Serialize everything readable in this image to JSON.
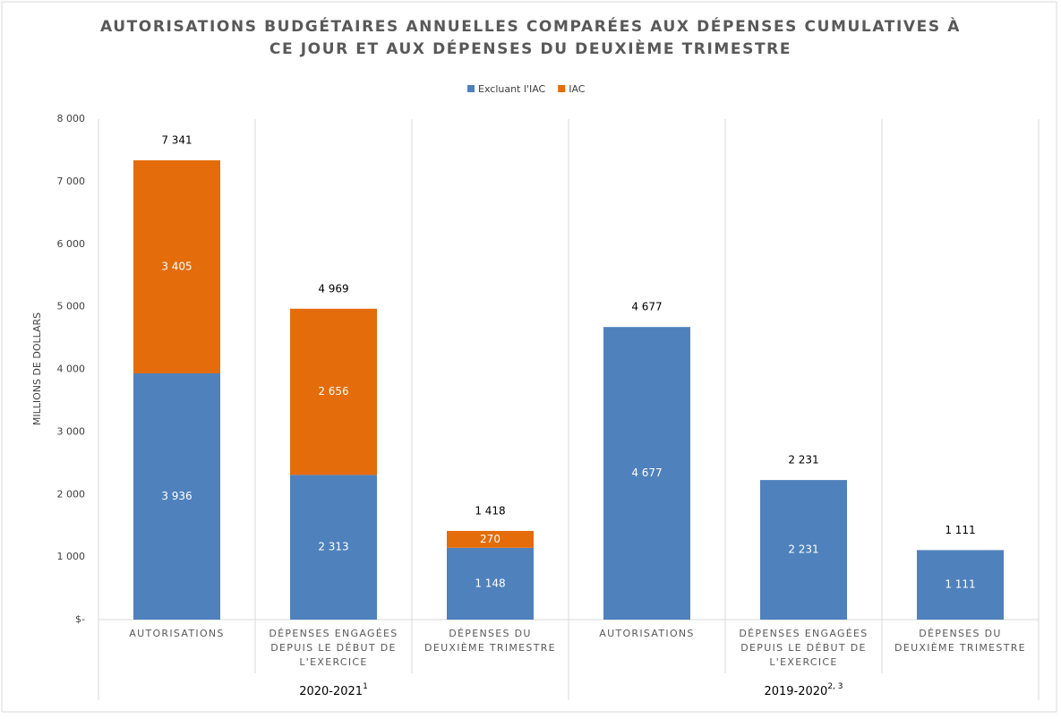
{
  "chart_data": {
    "type": "stacked_bar",
    "title": "AUTORISATIONS BUDGÉTAIRES ANNUELLES COMPARÉES AUX DÉPENSES CUMULATIVES À CE JOUR ET AUX DÉPENSES DU DEUXIÈME TRIMESTRE",
    "y_label": "MILLIONS DE DOLLARS",
    "categories": [
      "AUTORISATIONS",
      "DÉPENSES ENGAGÉES DEPUIS LE DÉBUT DE L'EXERCICE",
      "DÉPENSES DU DEUXIÈME TRIMESTRE",
      "AUTORISATIONS",
      "DÉPENSES ENGAGÉES DEPUIS LE DÉBUT DE L'EXERCICE",
      "DÉPENSES DU DEUXIÈME TRIMESTRE"
    ],
    "groups": [
      {
        "label": "2020-2021",
        "note": "1"
      },
      {
        "label": "2019-2020",
        "note": "2, 3"
      }
    ],
    "series": [
      {
        "name": "Excluant l'IAC",
        "color": "#4f81bd",
        "values": [
          3936,
          2313,
          1148,
          4677,
          2231,
          1111
        ],
        "value_labels": [
          "3 936",
          "2 313",
          "1 148",
          "4 677",
          "2 231",
          "1 111"
        ]
      },
      {
        "name": "IAC",
        "color": "#e46c0a",
        "values": [
          3405,
          2656,
          270,
          null,
          null,
          null
        ],
        "value_labels": [
          "3 405",
          "2 656",
          "270",
          null,
          null,
          null
        ]
      }
    ],
    "totals": [
      7341,
      4969,
      1418,
      4677,
      2231,
      1111
    ],
    "total_labels": [
      "7 341",
      "4 969",
      "1 418",
      "4 677",
      "2 231",
      "1 111"
    ],
    "ylim": [
      0,
      8000
    ],
    "yticks": [
      {
        "value": 0,
        "label": "$-"
      },
      {
        "value": 1000,
        "label": "1 000"
      },
      {
        "value": 2000,
        "label": "2 000"
      },
      {
        "value": 3000,
        "label": "3 000"
      },
      {
        "value": 4000,
        "label": "4 000"
      },
      {
        "value": 5000,
        "label": "5 000"
      },
      {
        "value": 6000,
        "label": "6 000"
      },
      {
        "value": 7000,
        "label": "7 000"
      },
      {
        "value": 8000,
        "label": "8 000"
      }
    ],
    "legend": "top"
  }
}
